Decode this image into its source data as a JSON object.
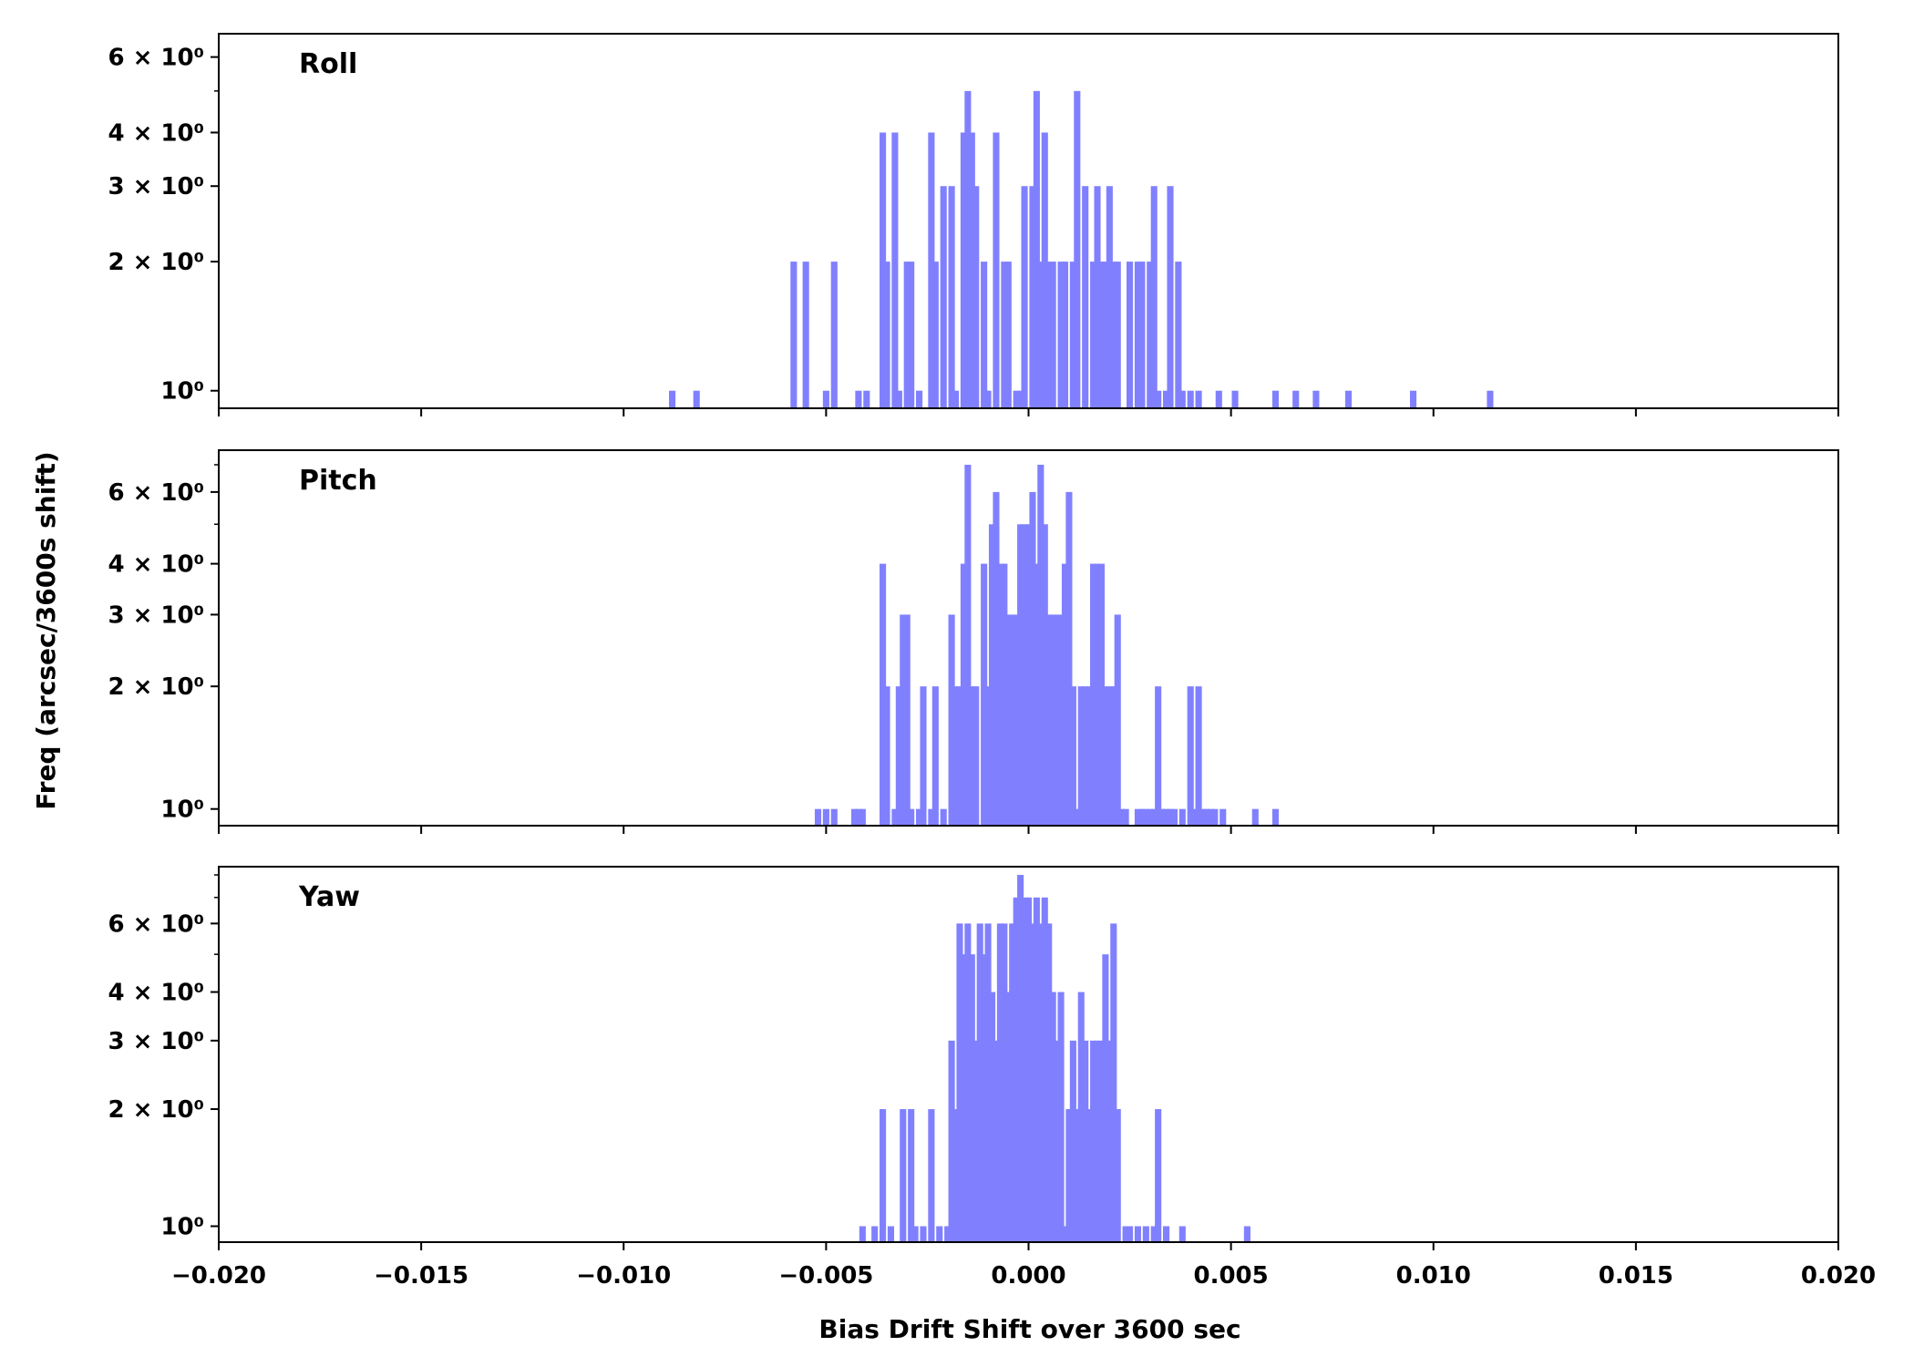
{
  "chart_data": {
    "type": "bar",
    "chart_kind": "histogram",
    "xlabel": "Bias Drift Shift over 3600 sec",
    "ylabel": "Freq (arcsec/3600s shift)",
    "xlim": [
      -0.02,
      0.02
    ],
    "x_ticks": [
      -0.02,
      -0.015,
      -0.01,
      -0.005,
      0.0,
      0.005,
      0.01,
      0.015,
      0.02
    ],
    "x_tick_labels": [
      "−0.020",
      "−0.015",
      "−0.010",
      "−0.005",
      "0.000",
      "0.005",
      "0.010",
      "0.015",
      "0.020"
    ],
    "y_scale": "log",
    "bin_width": 0.00016,
    "bar_color": "#8080ff",
    "grid": false,
    "legend": "none",
    "panels": [
      {
        "title": "Roll",
        "ylim": [
          0.91,
          6.8
        ],
        "y_ticks": [
          1,
          2,
          3,
          4,
          6
        ],
        "y_tick_labels": [
          "10⁰",
          "2 × 10⁰",
          "3 × 10⁰",
          "4 × 10⁰",
          "6 × 10⁰"
        ],
        "bars": [
          [
            -0.0088,
            1
          ],
          [
            -0.0082,
            1
          ],
          [
            -0.0058,
            2
          ],
          [
            -0.0055,
            2
          ],
          [
            -0.005,
            1
          ],
          [
            -0.0048,
            2
          ],
          [
            -0.0042,
            1
          ],
          [
            -0.004,
            1
          ],
          [
            -0.0036,
            4
          ],
          [
            -0.0035,
            2
          ],
          [
            -0.0033,
            4
          ],
          [
            -0.0032,
            1
          ],
          [
            -0.003,
            2
          ],
          [
            -0.0029,
            2
          ],
          [
            -0.0027,
            1
          ],
          [
            -0.0024,
            4
          ],
          [
            -0.0023,
            2
          ],
          [
            -0.0021,
            3
          ],
          [
            -0.0019,
            3
          ],
          [
            -0.0018,
            1
          ],
          [
            -0.0016,
            4
          ],
          [
            -0.0015,
            5
          ],
          [
            -0.0014,
            4
          ],
          [
            -0.0013,
            3
          ],
          [
            -0.0011,
            2
          ],
          [
            -0.001,
            1
          ],
          [
            -0.0008,
            4
          ],
          [
            -0.0006,
            2
          ],
          [
            -0.0005,
            2
          ],
          [
            -0.0003,
            1
          ],
          [
            -0.0002,
            1
          ],
          [
            -0.0001,
            3
          ],
          [
            0.0001,
            3
          ],
          [
            0.0002,
            5
          ],
          [
            0.0003,
            2
          ],
          [
            0.0004,
            4
          ],
          [
            0.0005,
            2
          ],
          [
            0.0006,
            2
          ],
          [
            0.0008,
            2
          ],
          [
            0.0009,
            2
          ],
          [
            0.0011,
            2
          ],
          [
            0.0012,
            5
          ],
          [
            0.0014,
            3
          ],
          [
            0.0016,
            2
          ],
          [
            0.0017,
            3
          ],
          [
            0.0018,
            2
          ],
          [
            0.0019,
            2
          ],
          [
            0.002,
            3
          ],
          [
            0.0021,
            2
          ],
          [
            0.0022,
            2
          ],
          [
            0.0025,
            2
          ],
          [
            0.0027,
            2
          ],
          [
            0.0028,
            2
          ],
          [
            0.003,
            2
          ],
          [
            0.0031,
            3
          ],
          [
            0.0032,
            1
          ],
          [
            0.0034,
            1
          ],
          [
            0.0035,
            3
          ],
          [
            0.0037,
            2
          ],
          [
            0.0038,
            1
          ],
          [
            0.004,
            1
          ],
          [
            0.0042,
            1
          ],
          [
            0.0047,
            1
          ],
          [
            0.0051,
            1
          ],
          [
            0.0061,
            1
          ],
          [
            0.0066,
            1
          ],
          [
            0.0071,
            1
          ],
          [
            0.0079,
            1
          ],
          [
            0.0095,
            1
          ],
          [
            0.0114,
            1
          ]
        ]
      },
      {
        "title": "Pitch",
        "ylim": [
          0.91,
          7.6
        ],
        "y_ticks": [
          1,
          2,
          3,
          4,
          6
        ],
        "y_tick_labels": [
          "10⁰",
          "2 × 10⁰",
          "3 × 10⁰",
          "4 × 10⁰",
          "6 × 10⁰"
        ],
        "bars": [
          [
            -0.0052,
            1
          ],
          [
            -0.005,
            1
          ],
          [
            -0.0048,
            1
          ],
          [
            -0.0043,
            1
          ],
          [
            -0.0042,
            1
          ],
          [
            -0.0041,
            1
          ],
          [
            -0.0036,
            4
          ],
          [
            -0.0035,
            2
          ],
          [
            -0.0033,
            1
          ],
          [
            -0.0032,
            2
          ],
          [
            -0.0031,
            3
          ],
          [
            -0.003,
            3
          ],
          [
            -0.0029,
            1
          ],
          [
            -0.0027,
            1
          ],
          [
            -0.0026,
            2
          ],
          [
            -0.0024,
            1
          ],
          [
            -0.0023,
            2
          ],
          [
            -0.0021,
            1
          ],
          [
            -0.0019,
            3
          ],
          [
            -0.0018,
            2
          ],
          [
            -0.0017,
            2
          ],
          [
            -0.0016,
            4
          ],
          [
            -0.0015,
            7
          ],
          [
            -0.0014,
            2
          ],
          [
            -0.0013,
            2
          ],
          [
            -0.0011,
            4
          ],
          [
            -0.001,
            2
          ],
          [
            -0.0009,
            5
          ],
          [
            -0.0008,
            6
          ],
          [
            -0.0007,
            4
          ],
          [
            -0.0006,
            4
          ],
          [
            -0.0005,
            3
          ],
          [
            -0.0004,
            3
          ],
          [
            -0.0003,
            3
          ],
          [
            -0.0002,
            5
          ],
          [
            -0.0001,
            5
          ],
          [
            0.0,
            5
          ],
          [
            0.0001,
            6
          ],
          [
            0.0002,
            4
          ],
          [
            0.0003,
            7
          ],
          [
            0.0004,
            5
          ],
          [
            0.0005,
            3
          ],
          [
            0.0006,
            3
          ],
          [
            0.0007,
            3
          ],
          [
            0.0008,
            3
          ],
          [
            0.0009,
            4
          ],
          [
            0.001,
            6
          ],
          [
            0.0011,
            2
          ],
          [
            0.0012,
            1
          ],
          [
            0.0013,
            2
          ],
          [
            0.0014,
            2
          ],
          [
            0.0015,
            2
          ],
          [
            0.0016,
            4
          ],
          [
            0.0017,
            4
          ],
          [
            0.0018,
            4
          ],
          [
            0.0019,
            2
          ],
          [
            0.002,
            2
          ],
          [
            0.0021,
            2
          ],
          [
            0.0022,
            3
          ],
          [
            0.0023,
            1
          ],
          [
            0.0024,
            1
          ],
          [
            0.0027,
            1
          ],
          [
            0.0028,
            1
          ],
          [
            0.0029,
            1
          ],
          [
            0.003,
            1
          ],
          [
            0.0031,
            1
          ],
          [
            0.0032,
            2
          ],
          [
            0.0033,
            1
          ],
          [
            0.0034,
            1
          ],
          [
            0.0035,
            1
          ],
          [
            0.0036,
            1
          ],
          [
            0.0038,
            1
          ],
          [
            0.004,
            2
          ],
          [
            0.0041,
            1
          ],
          [
            0.0042,
            2
          ],
          [
            0.0043,
            1
          ],
          [
            0.0044,
            1
          ],
          [
            0.0045,
            1
          ],
          [
            0.0046,
            1
          ],
          [
            0.0048,
            1
          ],
          [
            0.0056,
            1
          ],
          [
            0.0061,
            1
          ]
        ]
      },
      {
        "title": "Yaw",
        "ylim": [
          0.91,
          8.4
        ],
        "y_ticks": [
          1,
          2,
          3,
          4,
          6
        ],
        "y_tick_labels": [
          "10⁰",
          "2 × 10⁰",
          "3 × 10⁰",
          "4 × 10⁰",
          "6 × 10⁰"
        ],
        "bars": [
          [
            -0.0041,
            1
          ],
          [
            -0.0038,
            1
          ],
          [
            -0.0036,
            2
          ],
          [
            -0.0034,
            1
          ],
          [
            -0.0031,
            2
          ],
          [
            -0.0029,
            2
          ],
          [
            -0.0028,
            1
          ],
          [
            -0.0026,
            1
          ],
          [
            -0.0024,
            2
          ],
          [
            -0.0022,
            1
          ],
          [
            -0.002,
            1
          ],
          [
            -0.0019,
            3
          ],
          [
            -0.0018,
            2
          ],
          [
            -0.0017,
            6
          ],
          [
            -0.0016,
            5
          ],
          [
            -0.0015,
            6
          ],
          [
            -0.0014,
            5
          ],
          [
            -0.0013,
            3
          ],
          [
            -0.0012,
            6
          ],
          [
            -0.0011,
            5
          ],
          [
            -0.001,
            6
          ],
          [
            -0.0009,
            4
          ],
          [
            -0.0008,
            3
          ],
          [
            -0.0007,
            6
          ],
          [
            -0.0006,
            6
          ],
          [
            -0.0005,
            4
          ],
          [
            -0.0004,
            6
          ],
          [
            -0.0003,
            7
          ],
          [
            -0.0002,
            8
          ],
          [
            -0.0001,
            7
          ],
          [
            0.0,
            7
          ],
          [
            0.0001,
            6
          ],
          [
            0.0002,
            7
          ],
          [
            0.0003,
            6
          ],
          [
            0.0004,
            7
          ],
          [
            0.0005,
            6
          ],
          [
            0.0006,
            4
          ],
          [
            0.0007,
            3
          ],
          [
            0.0008,
            4
          ],
          [
            0.0009,
            1
          ],
          [
            0.001,
            2
          ],
          [
            0.0011,
            3
          ],
          [
            0.0012,
            2
          ],
          [
            0.0013,
            4
          ],
          [
            0.0014,
            3
          ],
          [
            0.0015,
            2
          ],
          [
            0.0016,
            3
          ],
          [
            0.0017,
            3
          ],
          [
            0.0018,
            3
          ],
          [
            0.0019,
            5
          ],
          [
            0.002,
            3
          ],
          [
            0.0021,
            6
          ],
          [
            0.0022,
            2
          ],
          [
            0.0024,
            1
          ],
          [
            0.0025,
            1
          ],
          [
            0.0027,
            1
          ],
          [
            0.0029,
            1
          ],
          [
            0.0031,
            1
          ],
          [
            0.0032,
            2
          ],
          [
            0.0034,
            1
          ],
          [
            0.0038,
            1
          ],
          [
            0.0054,
            1
          ]
        ]
      }
    ]
  }
}
